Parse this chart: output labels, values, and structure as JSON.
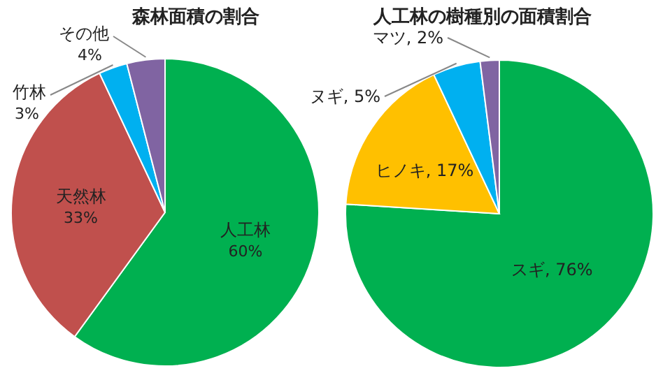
{
  "chart_data": [
    {
      "type": "pie",
      "title": "森林面積の割合",
      "categories": [
        "人工林",
        "天然林",
        "竹林",
        "その他"
      ],
      "values": [
        60,
        33,
        3,
        4
      ],
      "colors": [
        "#00b050",
        "#c0504d",
        "#00b0f0",
        "#8064a2"
      ],
      "value_labels": [
        "60%",
        "33%",
        "3%",
        "4%"
      ]
    },
    {
      "type": "pie",
      "title": "人工林の樹種別の面積割合",
      "categories": [
        "スギ",
        "ヒノキ",
        "ヌギ",
        "マツ"
      ],
      "values": [
        76,
        17,
        5,
        2
      ],
      "colors": [
        "#00b050",
        "#ffc000",
        "#00b0f0",
        "#8064a2"
      ],
      "value_labels": [
        "76%",
        "17%",
        "5%",
        "2%"
      ]
    }
  ]
}
